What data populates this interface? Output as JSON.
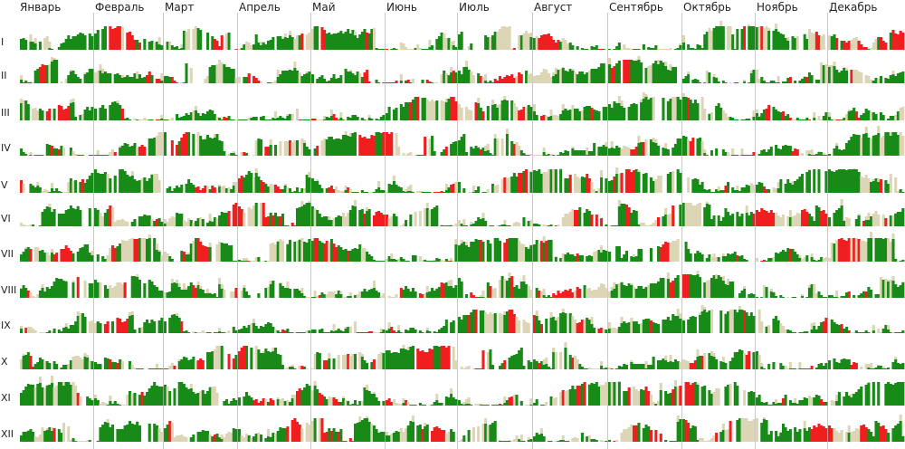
{
  "chart_data": {
    "type": "bar",
    "months": [
      "Январь",
      "Февраль",
      "Март",
      "Апрель",
      "Май",
      "Июнь",
      "Июль",
      "Август",
      "Сентябрь",
      "Октябрь",
      "Ноябрь",
      "Декабрь"
    ],
    "rows": [
      "I",
      "II",
      "III",
      "IV",
      "V",
      "VI",
      "VII",
      "VIII",
      "IX",
      "X",
      "XI",
      "XII"
    ],
    "month_days": [
      31,
      28,
      31,
      30,
      31,
      30,
      31,
      31,
      30,
      31,
      30,
      31
    ],
    "grid": true,
    "colors": {
      "green": "#188a18",
      "red": "#f01e1e",
      "tan": "#dcd6b6",
      "divider": "#c8c8c8"
    },
    "categories": [
      "green",
      "red",
      "tan"
    ]
  }
}
